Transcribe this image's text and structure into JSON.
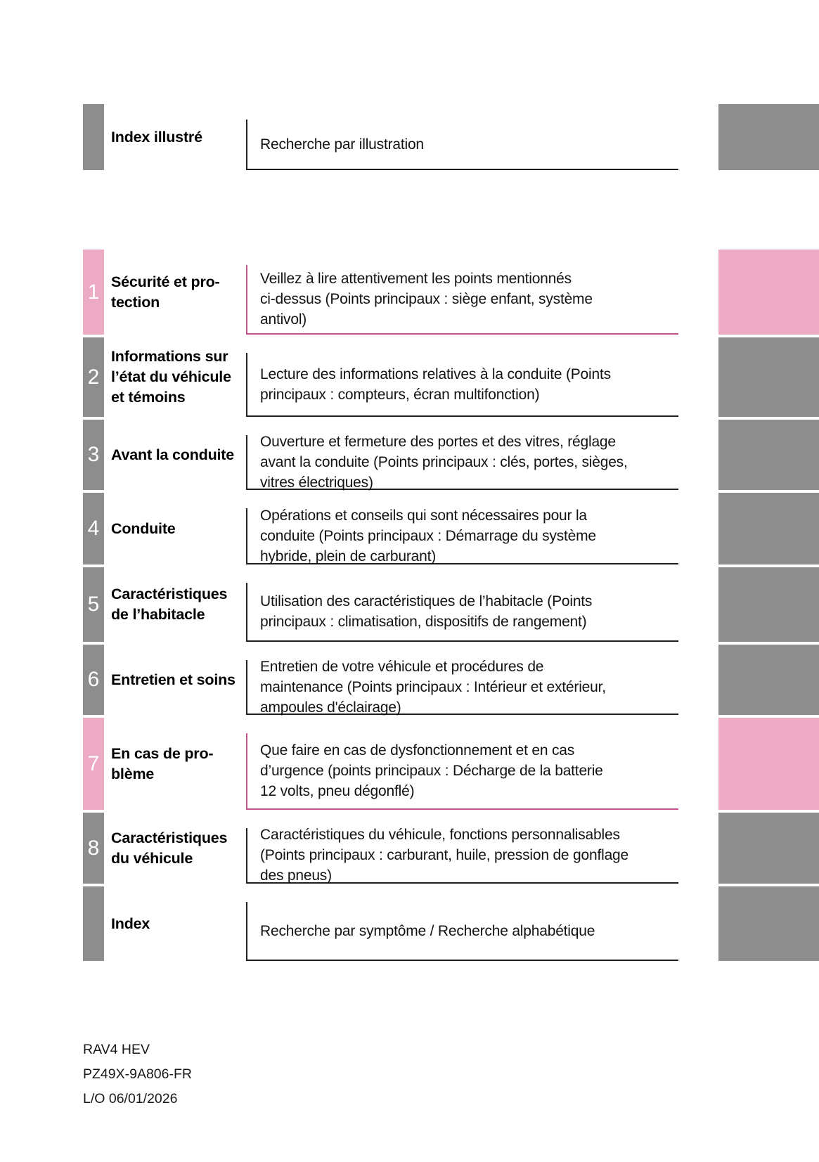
{
  "colors": {
    "pink": "#ecaac5",
    "pink_border": "#c4538e",
    "gray": "#8d8d8d",
    "dark_border": "#1f1f1f"
  },
  "footer": {
    "lines": [
      "RAV4 HEV",
      "PZ49X-9A806-FR",
      "L/O 06/01/2026"
    ]
  },
  "toc": {
    "rows": [
      {
        "id": "index-illustre",
        "number": "",
        "accent": "gray",
        "title": "Index illustré",
        "description": "Recherche par illustration"
      },
      {
        "id": "securite-et-protection",
        "number": "1",
        "accent": "pink",
        "title": "Sécurité et pro-\ntection",
        "description": "Veillez à lire attentivement les points mentionnés\nci-dessus (Points principaux : siège enfant, système\nantivol)"
      },
      {
        "id": "informations-etat-vehicule",
        "number": "2",
        "accent": "gray",
        "title": "Informations sur\nl’état du véhicule\net témoins",
        "description": "Lecture des informations relatives à la conduite (Points\nprincipaux : compteurs, écran multifonction)"
      },
      {
        "id": "avant-la-conduite",
        "number": "3",
        "accent": "gray",
        "title": "Avant la conduite",
        "description": "Ouverture et fermeture des portes et des vitres, réglage\navant la conduite (Points principaux : clés, portes, sièges,\nvitres électriques)"
      },
      {
        "id": "conduite",
        "number": "4",
        "accent": "gray",
        "title": "Conduite",
        "description": "Opérations et conseils qui sont nécessaires pour la\nconduite (Points principaux : Démarrage du système\nhybride, plein de carburant)"
      },
      {
        "id": "caracteristiques-habitacle",
        "number": "5",
        "accent": "gray",
        "title": "Caractéristiques\nde l’habitacle",
        "description": "Utilisation des caractéristiques de l’habitacle (Points\nprincipaux : climatisation, dispositifs de rangement)"
      },
      {
        "id": "entretien-et-soins",
        "number": "6",
        "accent": "gray",
        "title": "Entretien et soins",
        "description": "Entretien de votre véhicule et procédures de\nmaintenance (Points principaux : Intérieur et extérieur,\nampoules d'éclairage)"
      },
      {
        "id": "en-cas-de-probleme",
        "number": "7",
        "accent": "pink",
        "title": "En cas de pro-\nblème",
        "description": "Que faire en cas de dysfonctionnement et en cas\nd’urgence (points principaux : Décharge de la batterie\n12 volts, pneu dégonflé)"
      },
      {
        "id": "caracteristiques-vehicule",
        "number": "8",
        "accent": "gray",
        "title": "Caractéristiques\ndu véhicule",
        "description": "Caractéristiques du véhicule, fonctions personnalisables\n(Points principaux : carburant, huile, pression de gonflage\ndes pneus)"
      },
      {
        "id": "index",
        "number": "",
        "accent": "gray",
        "title": "Index",
        "description": "Recherche par symptôme / Recherche alphabétique"
      }
    ]
  }
}
